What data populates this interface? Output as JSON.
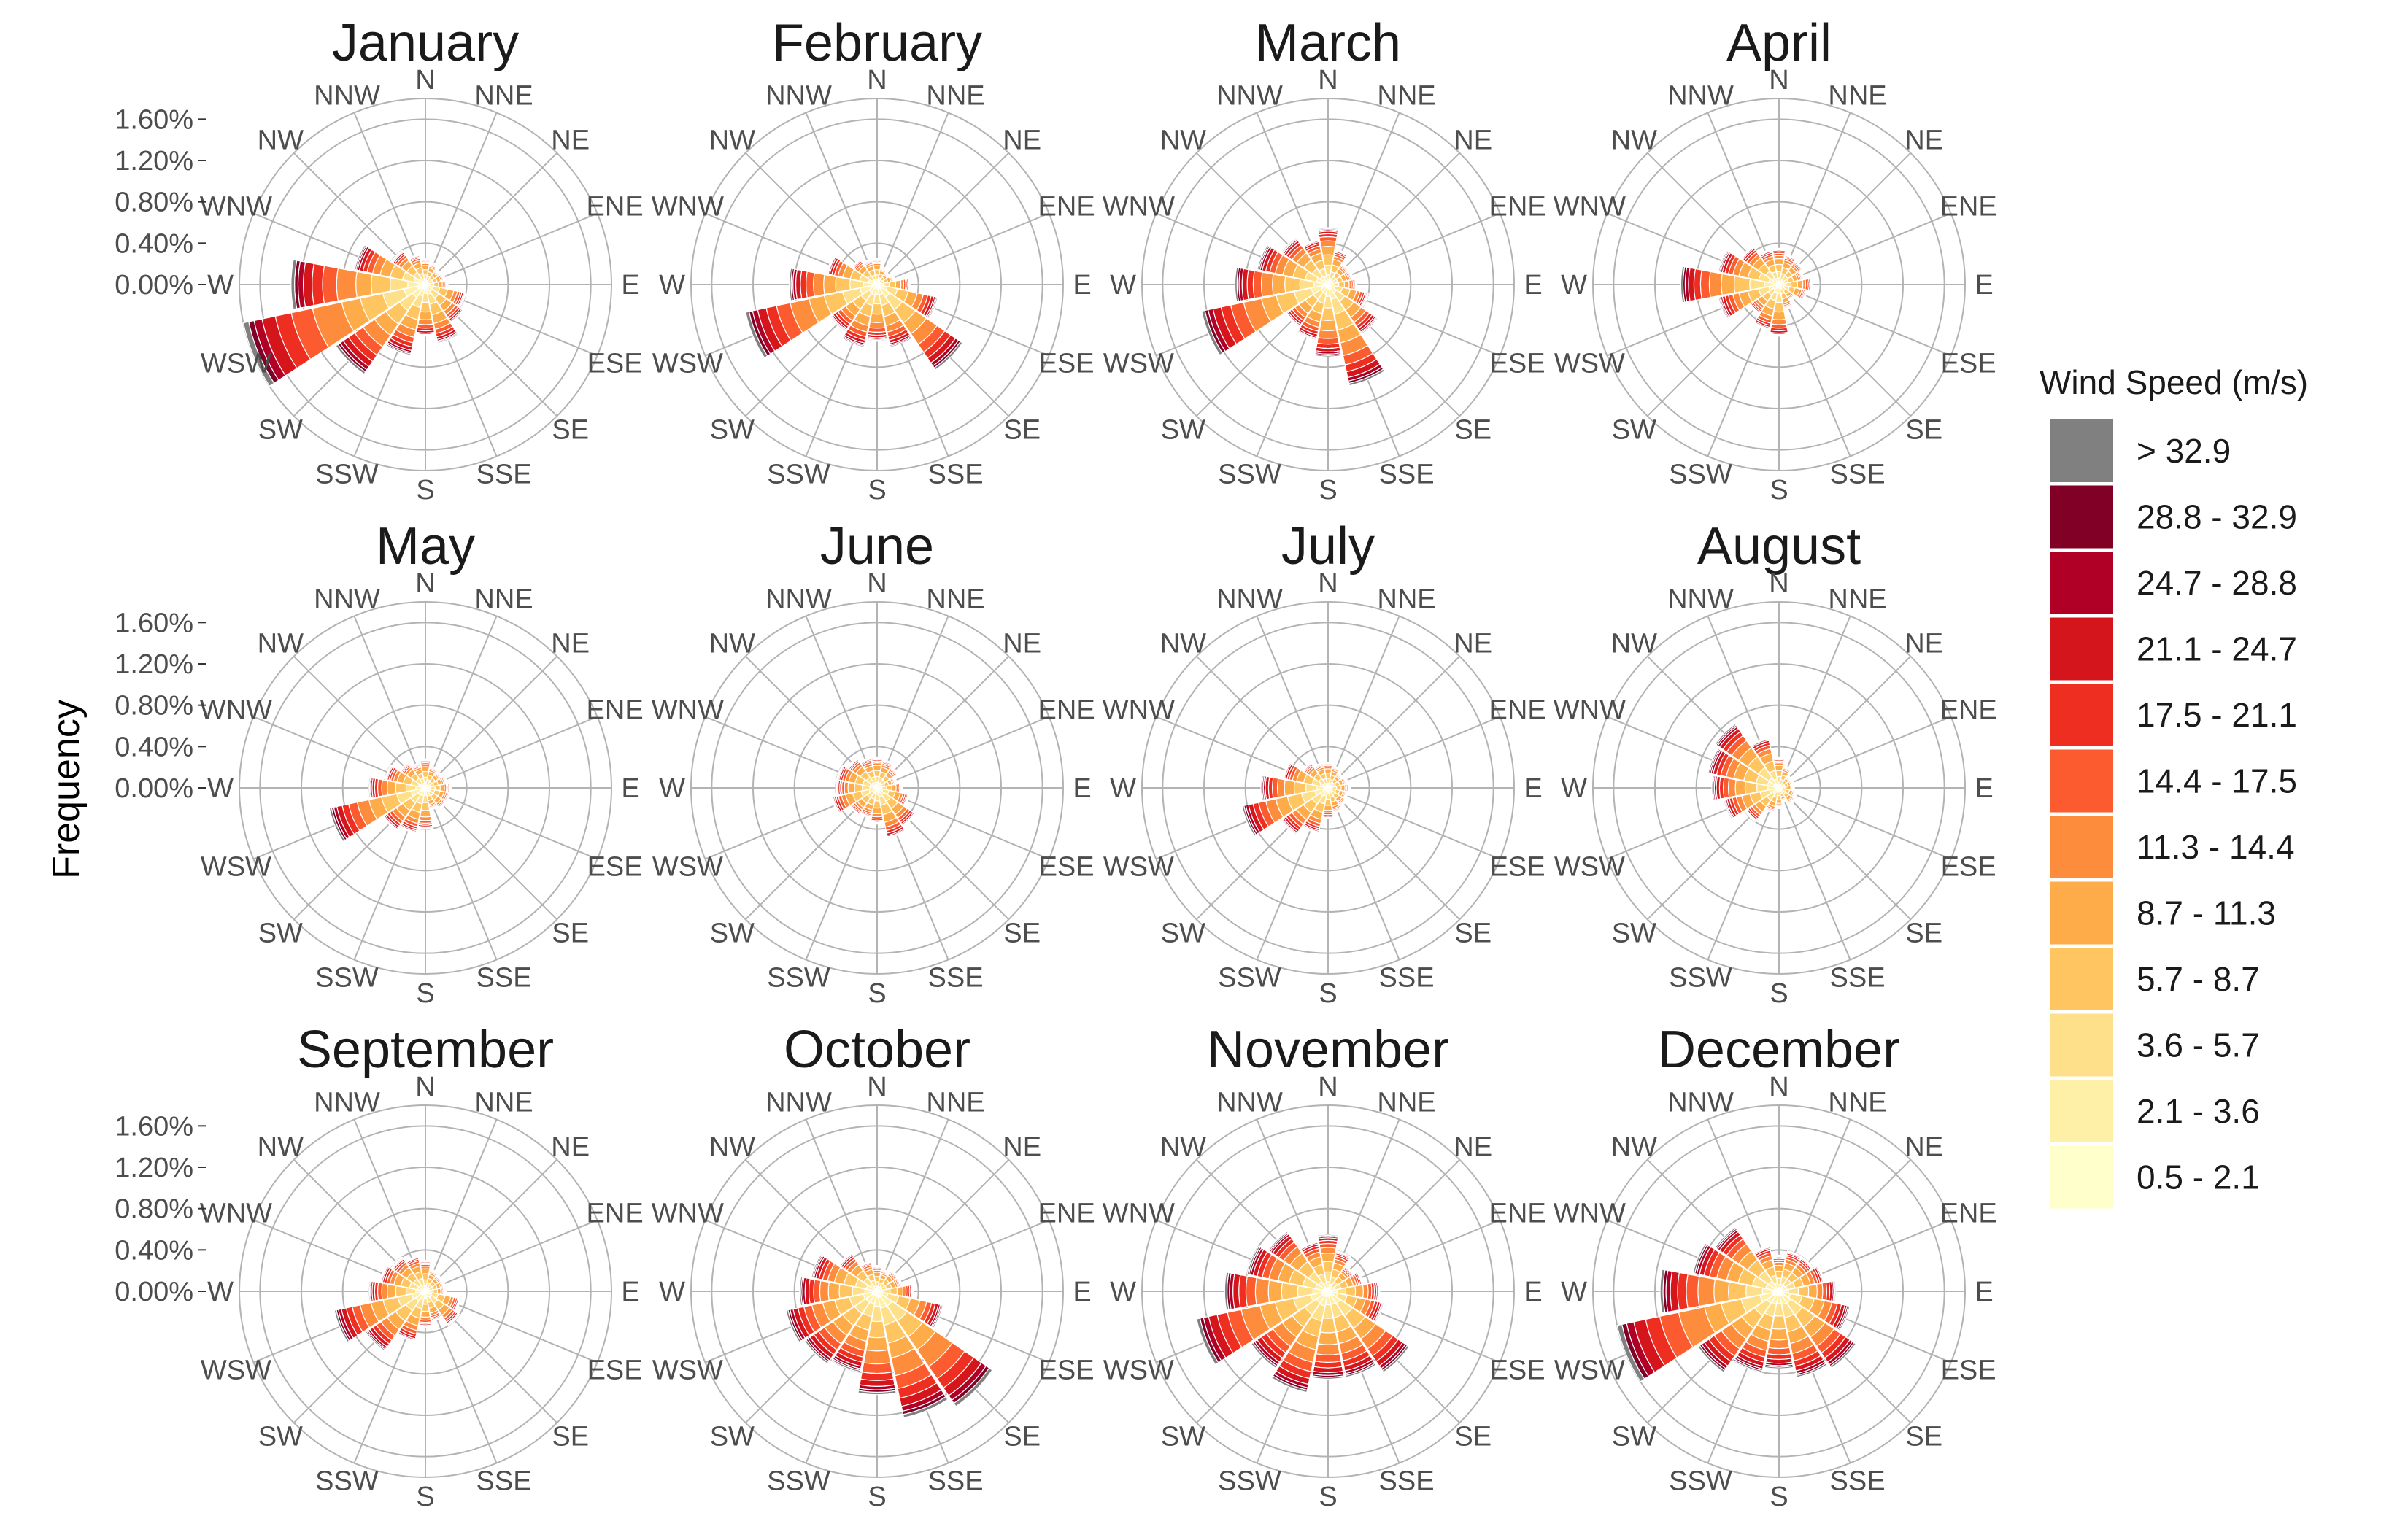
{
  "chart_data": {
    "type": "wind-rose",
    "y_axis_label": "Frequency",
    "radial_ticks": [
      "0.00%",
      "0.40%",
      "0.80%",
      "1.20%",
      "1.60%"
    ],
    "radial_tick_values": [
      0,
      0.4,
      0.8,
      1.2,
      1.6
    ],
    "radial_max": 1.8,
    "directions": [
      "N",
      "NNE",
      "NE",
      "ENE",
      "E",
      "ESE",
      "SE",
      "SSE",
      "S",
      "SSW",
      "SW",
      "WSW",
      "W",
      "WNW",
      "NW",
      "NNW"
    ],
    "legend": {
      "title": "Wind Speed (m/s)",
      "bins": [
        {
          "label": "> 32.9",
          "color": "#808080"
        },
        {
          "label": "28.8 - 32.9",
          "color": "#800026"
        },
        {
          "label": "24.7 - 28.8",
          "color": "#b10026"
        },
        {
          "label": "21.1 - 24.7",
          "color": "#d4161c"
        },
        {
          "label": "17.5 - 21.1",
          "color": "#ed2e21"
        },
        {
          "label": "14.4 - 17.5",
          "color": "#fb5b2f"
        },
        {
          "label": "11.3 - 14.4",
          "color": "#fd8d3c"
        },
        {
          "label": "8.7 - 11.3",
          "color": "#feab49"
        },
        {
          "label": "5.7 - 8.7",
          "color": "#fec561"
        },
        {
          "label": "3.6 - 5.7",
          "color": "#fedf8a"
        },
        {
          "label": "2.1 - 3.6",
          "color": "#fff0a8"
        },
        {
          "label": "0.5 - 2.1",
          "color": "#ffffcc"
        }
      ]
    },
    "panels": [
      {
        "month": "January",
        "totals": [
          0.25,
          0.22,
          0.18,
          0.2,
          0.22,
          0.4,
          0.45,
          0.58,
          0.5,
          0.7,
          1.05,
          1.8,
          1.3,
          0.7,
          0.4,
          0.3
        ]
      },
      {
        "month": "February",
        "totals": [
          0.25,
          0.18,
          0.15,
          0.18,
          0.32,
          0.6,
          1.0,
          0.62,
          0.55,
          0.62,
          0.55,
          1.3,
          0.85,
          0.5,
          0.3,
          0.25
        ]
      },
      {
        "month": "March",
        "totals": [
          0.55,
          0.35,
          0.25,
          0.25,
          0.28,
          0.4,
          0.58,
          1.0,
          0.7,
          0.55,
          0.5,
          1.25,
          0.9,
          0.7,
          0.55,
          0.45
        ]
      },
      {
        "month": "April",
        "totals": [
          0.35,
          0.3,
          0.28,
          0.25,
          0.32,
          0.28,
          0.2,
          0.25,
          0.5,
          0.45,
          0.35,
          0.6,
          0.95,
          0.6,
          0.45,
          0.35
        ]
      },
      {
        "month": "May",
        "totals": [
          0.28,
          0.22,
          0.2,
          0.22,
          0.25,
          0.25,
          0.25,
          0.22,
          0.4,
          0.45,
          0.5,
          0.95,
          0.55,
          0.4,
          0.3,
          0.25
        ]
      },
      {
        "month": "June",
        "totals": [
          0.3,
          0.28,
          0.25,
          0.2,
          0.25,
          0.32,
          0.45,
          0.5,
          0.35,
          0.3,
          0.32,
          0.45,
          0.4,
          0.4,
          0.35,
          0.3
        ]
      },
      {
        "month": "July",
        "totals": [
          0.25,
          0.22,
          0.18,
          0.2,
          0.22,
          0.2,
          0.22,
          0.25,
          0.3,
          0.45,
          0.55,
          0.85,
          0.65,
          0.45,
          0.3,
          0.25
        ]
      },
      {
        "month": "August",
        "totals": [
          0.3,
          0.22,
          0.15,
          0.15,
          0.15,
          0.18,
          0.2,
          0.15,
          0.2,
          0.25,
          0.4,
          0.55,
          0.65,
          0.7,
          0.75,
          0.5
        ]
      },
      {
        "month": "September",
        "totals": [
          0.3,
          0.22,
          0.2,
          0.2,
          0.2,
          0.35,
          0.4,
          0.3,
          0.35,
          0.5,
          0.7,
          0.9,
          0.55,
          0.45,
          0.4,
          0.35
        ]
      },
      {
        "month": "October",
        "totals": [
          0.25,
          0.22,
          0.25,
          0.25,
          0.35,
          0.65,
          1.35,
          1.25,
          1.0,
          0.8,
          0.85,
          0.9,
          0.75,
          0.65,
          0.45,
          0.3
        ]
      },
      {
        "month": "November",
        "totals": [
          0.55,
          0.4,
          0.3,
          0.35,
          0.5,
          0.55,
          0.95,
          0.85,
          0.85,
          1.0,
          0.9,
          1.3,
          1.0,
          0.8,
          0.7,
          0.5
        ]
      },
      {
        "month": "December",
        "totals": [
          0.35,
          0.4,
          0.4,
          0.45,
          0.55,
          0.7,
          0.9,
          0.85,
          0.75,
          0.8,
          0.95,
          1.6,
          1.15,
          0.85,
          0.75,
          0.45
        ]
      }
    ]
  }
}
